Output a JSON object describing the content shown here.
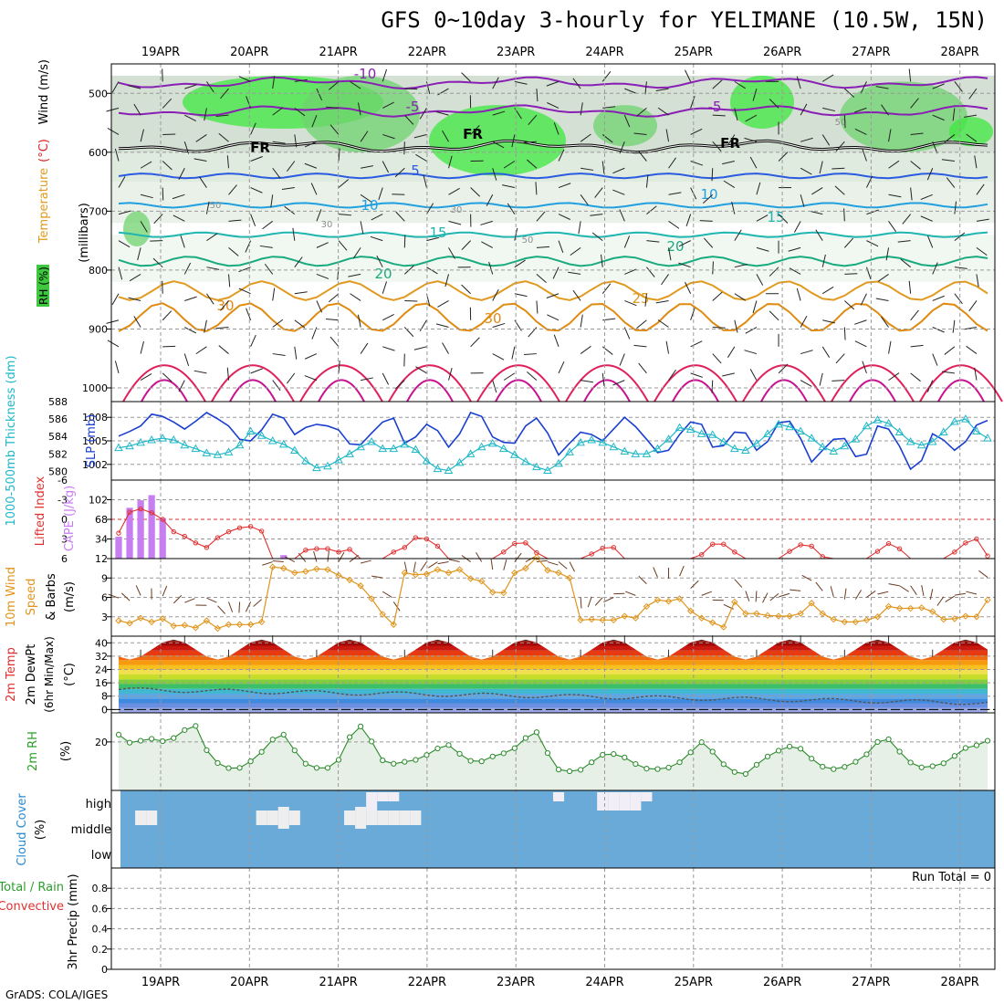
{
  "header": {
    "title": "GFS 0~10day 3-hourly for YELIMANE (10.5W, 15N)",
    "footer": "GrADS: COLA/IGES"
  },
  "chart_data": [
    {
      "id": "sounding",
      "type": "contour",
      "x_dates": [
        "19APR",
        "20APR",
        "21APR",
        "22APR",
        "23APR",
        "24APR",
        "25APR",
        "26APR",
        "27APR",
        "28APR"
      ],
      "ylabel_parts": [
        "RH (%)",
        "Temperature",
        "(°C)",
        "Wind",
        "(m/s)",
        "(millibars)"
      ],
      "y_ticks": [
        500,
        600,
        700,
        800,
        900,
        1000
      ],
      "ylim": [
        450,
        1000
      ],
      "temp_contours": [
        {
          "label": "-10",
          "color": "#8a1fb5",
          "base_p": 482
        },
        {
          "label": "-5",
          "color": "#8a1fb5",
          "base_p": 530
        },
        {
          "label": "FR",
          "color": "#000000",
          "base_p": 590
        },
        {
          "label": "5",
          "color": "#2a5be0",
          "base_p": 640
        },
        {
          "label": "10",
          "color": "#21a0e0",
          "base_p": 690
        },
        {
          "label": "15",
          "color": "#1fb5b0",
          "base_p": 740
        },
        {
          "label": "20",
          "color": "#1aaa80",
          "base_p": 785
        },
        {
          "label": "25",
          "color": "#e09a20",
          "base_p": 835
        },
        {
          "label": "30",
          "color": "#e08a10",
          "base_p": 880
        }
      ],
      "contour_labels": [
        "-10",
        "-5",
        "-5",
        "FR",
        "FR",
        "FR",
        "5",
        "10",
        "10",
        "15",
        "15",
        "20",
        "20",
        "25",
        "30",
        "30",
        "50",
        "50",
        "30",
        "30",
        "50"
      ]
    },
    {
      "id": "thickness_slp",
      "type": "line",
      "ylabel_left": "1000-500mb Thickness (dm)",
      "ylabel_right": "SLP (mb)",
      "thickness_ticks": [
        580,
        582,
        584,
        586,
        588
      ],
      "slp_ticks": [
        1002,
        1005,
        1008
      ],
      "thickness_lim": [
        579,
        588
      ],
      "slp_lim": [
        1000,
        1010
      ],
      "slp": [
        1005.6,
        1006.2,
        1006.9,
        1008.4,
        1008.1,
        1007.4,
        1006.5,
        1007.5,
        1008.6,
        1007.8,
        1006.9,
        1005.2,
        1005.0,
        1006.4,
        1008.4,
        1007.9,
        1005.8,
        1006.7,
        1007.1,
        1006.9,
        1006.4,
        1004.6,
        1004.5,
        1006.0,
        1007.4,
        1007.9,
        1004.7,
        1005.5,
        1007.1,
        1006.3,
        1004.2,
        1005.9,
        1008.6,
        1008.1,
        1005.5,
        1004.8,
        1004.7,
        1006.9,
        1007.9,
        1006.0,
        1003.2,
        1004.7,
        1006.1,
        1005.8,
        1005.0,
        1006.5,
        1008.0,
        1006.8,
        1005.2,
        1003.5,
        1003.8,
        1005.8,
        1007.4,
        1007.1,
        1004.2,
        1004.4,
        1006.1,
        1006.0,
        1003.8,
        1004.9,
        1007.3,
        1007.5,
        1005.3,
        1002.3,
        1003.8,
        1005.2,
        1005.3,
        1003.0,
        1003.3,
        1006.9,
        1006.5,
        1004.3,
        1001.4,
        1002.5,
        1005.9,
        1005.1,
        1003.8,
        1004.9,
        1007.0,
        1007.6
      ],
      "thickness": [
        582.7,
        582.9,
        583.3,
        583.6,
        583.8,
        583.6,
        583.0,
        582.6,
        582.1,
        581.9,
        582.2,
        583.0,
        584.6,
        584.1,
        583.5,
        583.1,
        582.4,
        581.2,
        580.4,
        580.6,
        581.3,
        582.0,
        582.8,
        583.4,
        582.6,
        582.6,
        583.1,
        582.5,
        581.2,
        580.3,
        580.1,
        581.0,
        582.0,
        582.8,
        583.2,
        582.6,
        581.9,
        581.1,
        580.5,
        580.1,
        580.9,
        582.2,
        583.3,
        583.6,
        583.3,
        582.8,
        582.3,
        582.0,
        582.0,
        582.6,
        583.7,
        585.0,
        584.8,
        584.3,
        584.2,
        583.4,
        582.6,
        582.4,
        583.2,
        584.3,
        585.4,
        585.1,
        584.6,
        583.8,
        582.8,
        582.3,
        582.9,
        583.7,
        585.2,
        585.9,
        585.5,
        584.5,
        583.4,
        583.0,
        583.4,
        584.5,
        585.7,
        586.0,
        584.6,
        583.8
      ]
    },
    {
      "id": "cape_li",
      "type": "bar+line",
      "ylabel_left": "Lifted Index",
      "ylabel_right": "CAPE (J/kg)",
      "li_ticks": [
        "-6",
        "-3",
        "0",
        "3",
        "6"
      ],
      "cape_ticks": [
        34,
        68,
        102
      ],
      "li_lim": [
        -6,
        6
      ],
      "cape_lim": [
        0,
        136
      ],
      "li": [
        2.1,
        -1.1,
        -1.6,
        -1.0,
        0.0,
        1.9,
        2.6,
        3.6,
        4.3,
        2.8,
        1.9,
        1.3,
        1.1,
        1.8,
        6.0,
        6.0,
        6.0,
        4.7,
        4.5,
        4.5,
        5.0,
        4.6,
        6.0,
        6.0,
        6.0,
        5.0,
        4.3,
        2.8,
        3.0,
        4.1,
        6.0,
        6.0,
        6.0,
        6.0,
        6.0,
        5.0,
        3.7,
        3.6,
        5.1,
        6.0,
        6.0,
        6.0,
        6.0,
        5.3,
        4.4,
        4.3,
        6.0,
        6.0,
        6.0,
        6.0,
        6.0,
        6.0,
        6.0,
        5.4,
        3.8,
        3.8,
        5.0,
        6.0,
        6.0,
        6.0,
        6.0,
        4.9,
        3.9,
        4.1,
        5.7,
        6.0,
        6.0,
        6.0,
        6.0,
        4.9,
        3.7,
        4.5,
        6.0,
        6.0,
        6.0,
        6.0,
        5.0,
        3.6,
        3.0,
        5.6
      ],
      "cape": [
        38,
        88,
        101,
        110,
        70,
        0,
        0,
        0,
        0,
        0,
        0,
        0,
        0,
        0,
        0,
        6,
        0,
        0,
        0,
        0,
        0,
        0,
        0,
        0,
        0,
        0,
        0,
        0,
        0,
        0,
        0,
        0,
        0,
        0,
        0,
        0,
        0,
        0,
        0,
        0,
        0,
        0,
        0,
        0,
        0,
        0,
        0,
        0,
        0,
        0,
        0,
        0,
        0,
        0,
        0,
        0,
        0,
        0,
        0,
        0,
        0,
        0,
        0,
        0,
        0,
        0,
        0,
        0,
        0,
        0,
        0,
        0,
        0,
        0,
        0,
        0,
        0,
        0,
        0,
        0
      ]
    },
    {
      "id": "wind10m",
      "type": "line",
      "ylabel": "10m Wind Speed & Barbs (m/s)",
      "ylabel_parts": [
        "10m Wind",
        "Speed",
        "& Barbs",
        "(m/s)"
      ],
      "ticks": [
        3,
        6,
        9,
        12
      ],
      "ylim": [
        0,
        12
      ],
      "speed": [
        2.4,
        2.0,
        2.8,
        2.2,
        2.7,
        1.6,
        1.7,
        1.3,
        2.4,
        1.2,
        1.8,
        1.8,
        1.8,
        2.2,
        10.7,
        10.5,
        9.8,
        10.0,
        10.4,
        10.3,
        9.4,
        8.7,
        7.8,
        5.8,
        3.4,
        1.8,
        9.8,
        9.5,
        9.6,
        10.3,
        9.8,
        10.3,
        8.9,
        8.5,
        6.8,
        6.7,
        9.8,
        10.5,
        12.2,
        10.2,
        9.8,
        9.0,
        2.5,
        2.6,
        2.5,
        2.5,
        3.1,
        2.8,
        4.6,
        5.6,
        5.4,
        5.8,
        3.9,
        2.8,
        2.1,
        1.4,
        5.3,
        3.5,
        3.5,
        3.2,
        3.1,
        3.1,
        3.5,
        5.1,
        3.5,
        2.6,
        2.2,
        2.2,
        2.5,
        3.0,
        4.6,
        4.3,
        4.3,
        4.4,
        3.8,
        2.6,
        2.7,
        3.1,
        3.0,
        5.6
      ]
    },
    {
      "id": "temp2m",
      "type": "area",
      "ylabel_parts": [
        "2m Temp",
        "2m DewPt",
        "(6hr Min/Max)",
        "(°C)"
      ],
      "ticks": [
        0,
        8,
        16,
        24,
        32,
        40
      ],
      "ylim": [
        -2,
        44
      ],
      "temp_cycle_min": 30,
      "temp_cycle_max": 42,
      "dewpoint_start": 12,
      "dewpoint_end": 4,
      "band_colors": [
        "#9aa8e8",
        "#6a8ee0",
        "#3d8adf",
        "#5aa8e8",
        "#42b8d0",
        "#3cbf6a",
        "#7fce3a",
        "#c8dc2a",
        "#f0e050",
        "#f6c020",
        "#f69a10",
        "#f06a10",
        "#e83a10",
        "#c81810",
        "#a00808",
        "#5a2a20"
      ]
    },
    {
      "id": "rh2m",
      "type": "line",
      "ylabel": "2m RH (%)",
      "ticks": [
        20
      ],
      "ylim": [
        0,
        32
      ],
      "values": [
        23.0,
        19.7,
        20.5,
        21.3,
        20.3,
        21.6,
        24.9,
        26.6,
        16.6,
        11.3,
        9.2,
        9.3,
        12.0,
        15.9,
        21.0,
        23.0,
        16.5,
        11.0,
        9.3,
        9.3,
        12.6,
        22.0,
        26.4,
        20.2,
        12.4,
        11.0,
        11.8,
        12.6,
        14.6,
        17.3,
        18.7,
        15.1,
        12.2,
        12.0,
        14.0,
        15.3,
        17.4,
        21.6,
        24.0,
        15.4,
        8.6,
        7.9,
        8.5,
        11.6,
        14.7,
        15.0,
        13.6,
        10.9,
        9.0,
        8.8,
        9.4,
        11.6,
        15.7,
        19.9,
        16.0,
        10.8,
        7.6,
        6.8,
        10.6,
        14.0,
        16.4,
        18.1,
        17.2,
        13.1,
        9.8,
        8.8,
        9.7,
        11.8,
        14.9,
        20.0,
        21.1,
        16.0,
        11.5,
        9.5,
        10.0,
        11.2,
        14.2,
        17.5,
        18.6,
        20.5
      ]
    },
    {
      "id": "cloud",
      "type": "bar",
      "ylabel_parts": [
        "Cloud Cover",
        "(%)"
      ],
      "levels": [
        "high",
        "middle",
        "low"
      ],
      "high": [
        0,
        0,
        0,
        0,
        0,
        0,
        0,
        0,
        0,
        0,
        0,
        0,
        0,
        0,
        0,
        0,
        0,
        0,
        0,
        0,
        0,
        0,
        0,
        2,
        1,
        1,
        0,
        0,
        0,
        0,
        0,
        0,
        0,
        0,
        0,
        0,
        0,
        0,
        0,
        0,
        1,
        0,
        0,
        0,
        2,
        2,
        2,
        2,
        1,
        0,
        0,
        0,
        0,
        0,
        0,
        0,
        0,
        0,
        0,
        0,
        0,
        0,
        0,
        0,
        0,
        0,
        0,
        0,
        0,
        0,
        0,
        0,
        0,
        0,
        0,
        0,
        0,
        0,
        0,
        0
      ],
      "mid": [
        0,
        0,
        2,
        2,
        0,
        0,
        0,
        0,
        0,
        0,
        0,
        0,
        0,
        2,
        2,
        3,
        2,
        0,
        0,
        0,
        0,
        2,
        3,
        2,
        2,
        2,
        2,
        2,
        0,
        0,
        0,
        0,
        0,
        0,
        0,
        0,
        0,
        0,
        0,
        0,
        0,
        0,
        0,
        0,
        0,
        0,
        0,
        0,
        0,
        0,
        0,
        0,
        0,
        0,
        0,
        0,
        0,
        0,
        0,
        0,
        0,
        0,
        0,
        0,
        0,
        0,
        0,
        0,
        0,
        0,
        0,
        0,
        0,
        0,
        0,
        0,
        0,
        0,
        0,
        0
      ]
    },
    {
      "id": "precip",
      "type": "bar",
      "ylabel_parts": [
        "Total / Rain",
        "Convective",
        "3hr Precip (mm)"
      ],
      "ticks": [
        "0",
        "0.2",
        "0.4",
        "0.6",
        "0.8"
      ],
      "ylim": [
        0,
        1.0
      ],
      "run_total": "Run Total = 0",
      "values": []
    }
  ]
}
